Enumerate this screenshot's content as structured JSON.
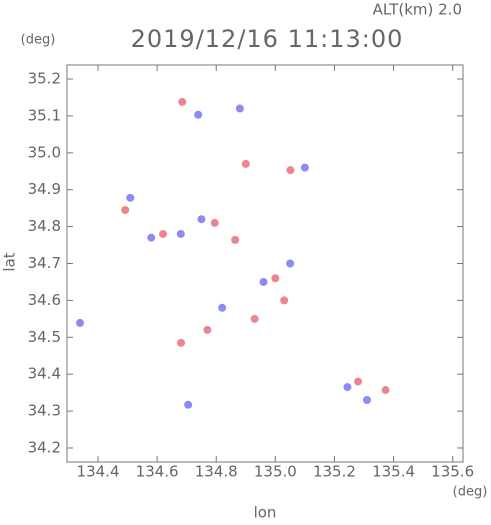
{
  "chart_data": {
    "type": "scatter",
    "title": "2019/12/16 11:13:00",
    "subtitle": "ALT(km) 2.0",
    "x_label": "lon",
    "y_label": "lat",
    "x_unit": "(deg)",
    "y_unit": "(deg)",
    "xlim": [
      134.295,
      135.635
    ],
    "ylim": [
      34.162,
      35.238
    ],
    "xticks": [
      134.4,
      134.6,
      134.8,
      {
        "value": 135.0,
        "label": "135.0"
      },
      135.2,
      135.4,
      135.6
    ],
    "yticks": [
      34.2,
      34.3,
      34.4,
      34.5,
      34.6,
      34.7,
      34.8,
      34.9,
      {
        "value": 35.0,
        "label": "35.0"
      },
      35.1,
      35.2
    ],
    "series": [
      {
        "color": "#e8707c",
        "x": [
          134.685,
          134.492,
          135.051,
          134.864,
          135.373,
          134.681,
          134.795,
          134.93,
          135.03,
          134.77,
          134.9,
          135.28,
          134.62,
          135.0
        ],
        "y": [
          35.138,
          34.845,
          34.953,
          34.764,
          34.357,
          34.485,
          34.81,
          34.55,
          34.6,
          34.52,
          34.97,
          34.38,
          34.78,
          34.66
        ]
      },
      {
        "color": "#7777ee",
        "x": [
          134.739,
          134.509,
          134.339,
          135.244,
          134.705,
          134.68,
          134.88,
          135.1,
          134.96,
          134.82,
          135.31,
          134.75,
          135.05,
          134.58
        ],
        "y": [
          35.103,
          34.878,
          34.539,
          34.365,
          34.317,
          34.78,
          35.12,
          34.96,
          34.65,
          34.58,
          34.33,
          34.82,
          34.7,
          34.77
        ]
      }
    ]
  }
}
